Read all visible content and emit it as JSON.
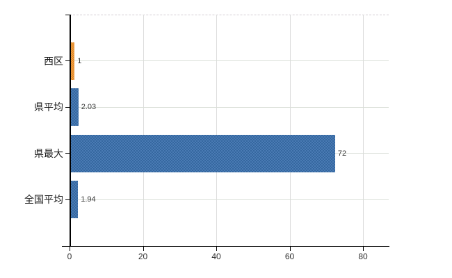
{
  "page": {
    "background_color": "#ffffff"
  },
  "chart_data": {
    "type": "bar",
    "orientation": "horizontal",
    "title": "",
    "xlabel": "",
    "ylabel": "",
    "categories": [
      "西区",
      "県平均",
      "県最大",
      "全国平均"
    ],
    "values": [
      1,
      2.03,
      72,
      1.94
    ],
    "value_labels": [
      "1",
      "2.03",
      "72",
      "1.94"
    ],
    "bar_colors": [
      "orange",
      "blue",
      "blue",
      "blue"
    ],
    "highlight_color": "#e8953a",
    "series_color": "#3e70a8",
    "xticks": [
      0,
      20,
      40,
      60,
      80
    ],
    "xtick_labels": [
      "0",
      "20",
      "40",
      "60",
      "80"
    ],
    "xlim": [
      0,
      87
    ],
    "grid": true,
    "grid_color": "#dcdcdc",
    "axis_color": "#000000",
    "top_border_style": "dashed",
    "legend": false
  }
}
